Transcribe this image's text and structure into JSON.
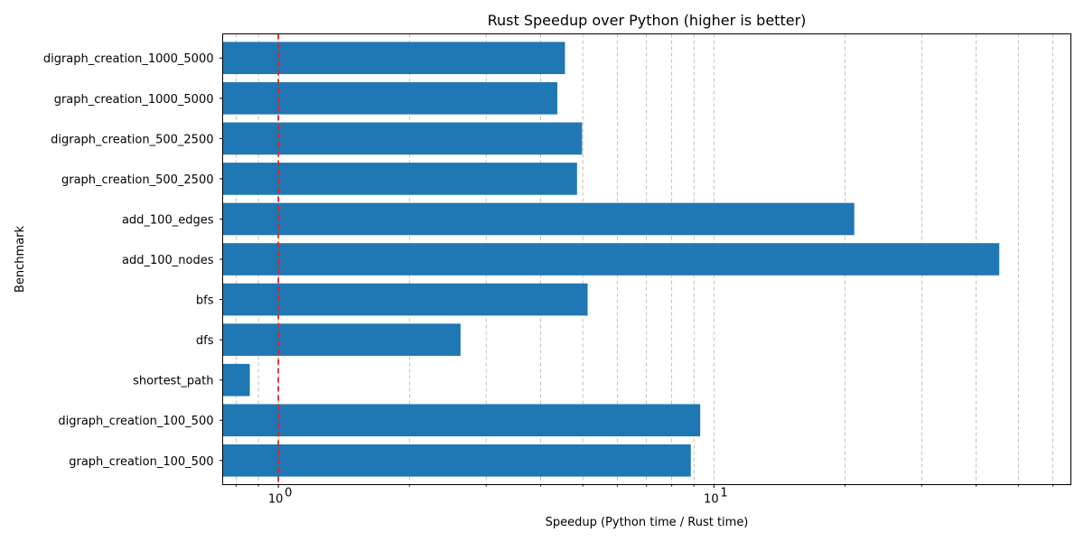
{
  "chart_data": {
    "type": "bar",
    "orientation": "horizontal",
    "title": "Rust Speedup over Python (higher is better)",
    "xlabel": "Speedup (Python time / Rust time)",
    "ylabel": "Benchmark",
    "xscale": "log",
    "xlim": [
      0.745,
      66
    ],
    "x_major_ticks": [
      {
        "value": 1,
        "base": "10",
        "exp": "0"
      },
      {
        "value": 10,
        "base": "10",
        "exp": "1"
      }
    ],
    "categories": [
      "digraph_creation_1000_5000",
      "graph_creation_1000_5000",
      "digraph_creation_500_2500",
      "graph_creation_500_2500",
      "add_100_edges",
      "add_100_nodes",
      "bfs",
      "dfs",
      "shortest_path",
      "digraph_creation_100_500",
      "graph_creation_100_500"
    ],
    "values": [
      4.55,
      4.37,
      4.98,
      4.85,
      21.0,
      45.2,
      5.13,
      2.62,
      0.86,
      9.3,
      8.85
    ],
    "reference_line": {
      "value": 1,
      "color": "#d62728",
      "style": "dashed"
    },
    "bar_color": "#1f77b4",
    "grid": "x-major-and-minor"
  }
}
